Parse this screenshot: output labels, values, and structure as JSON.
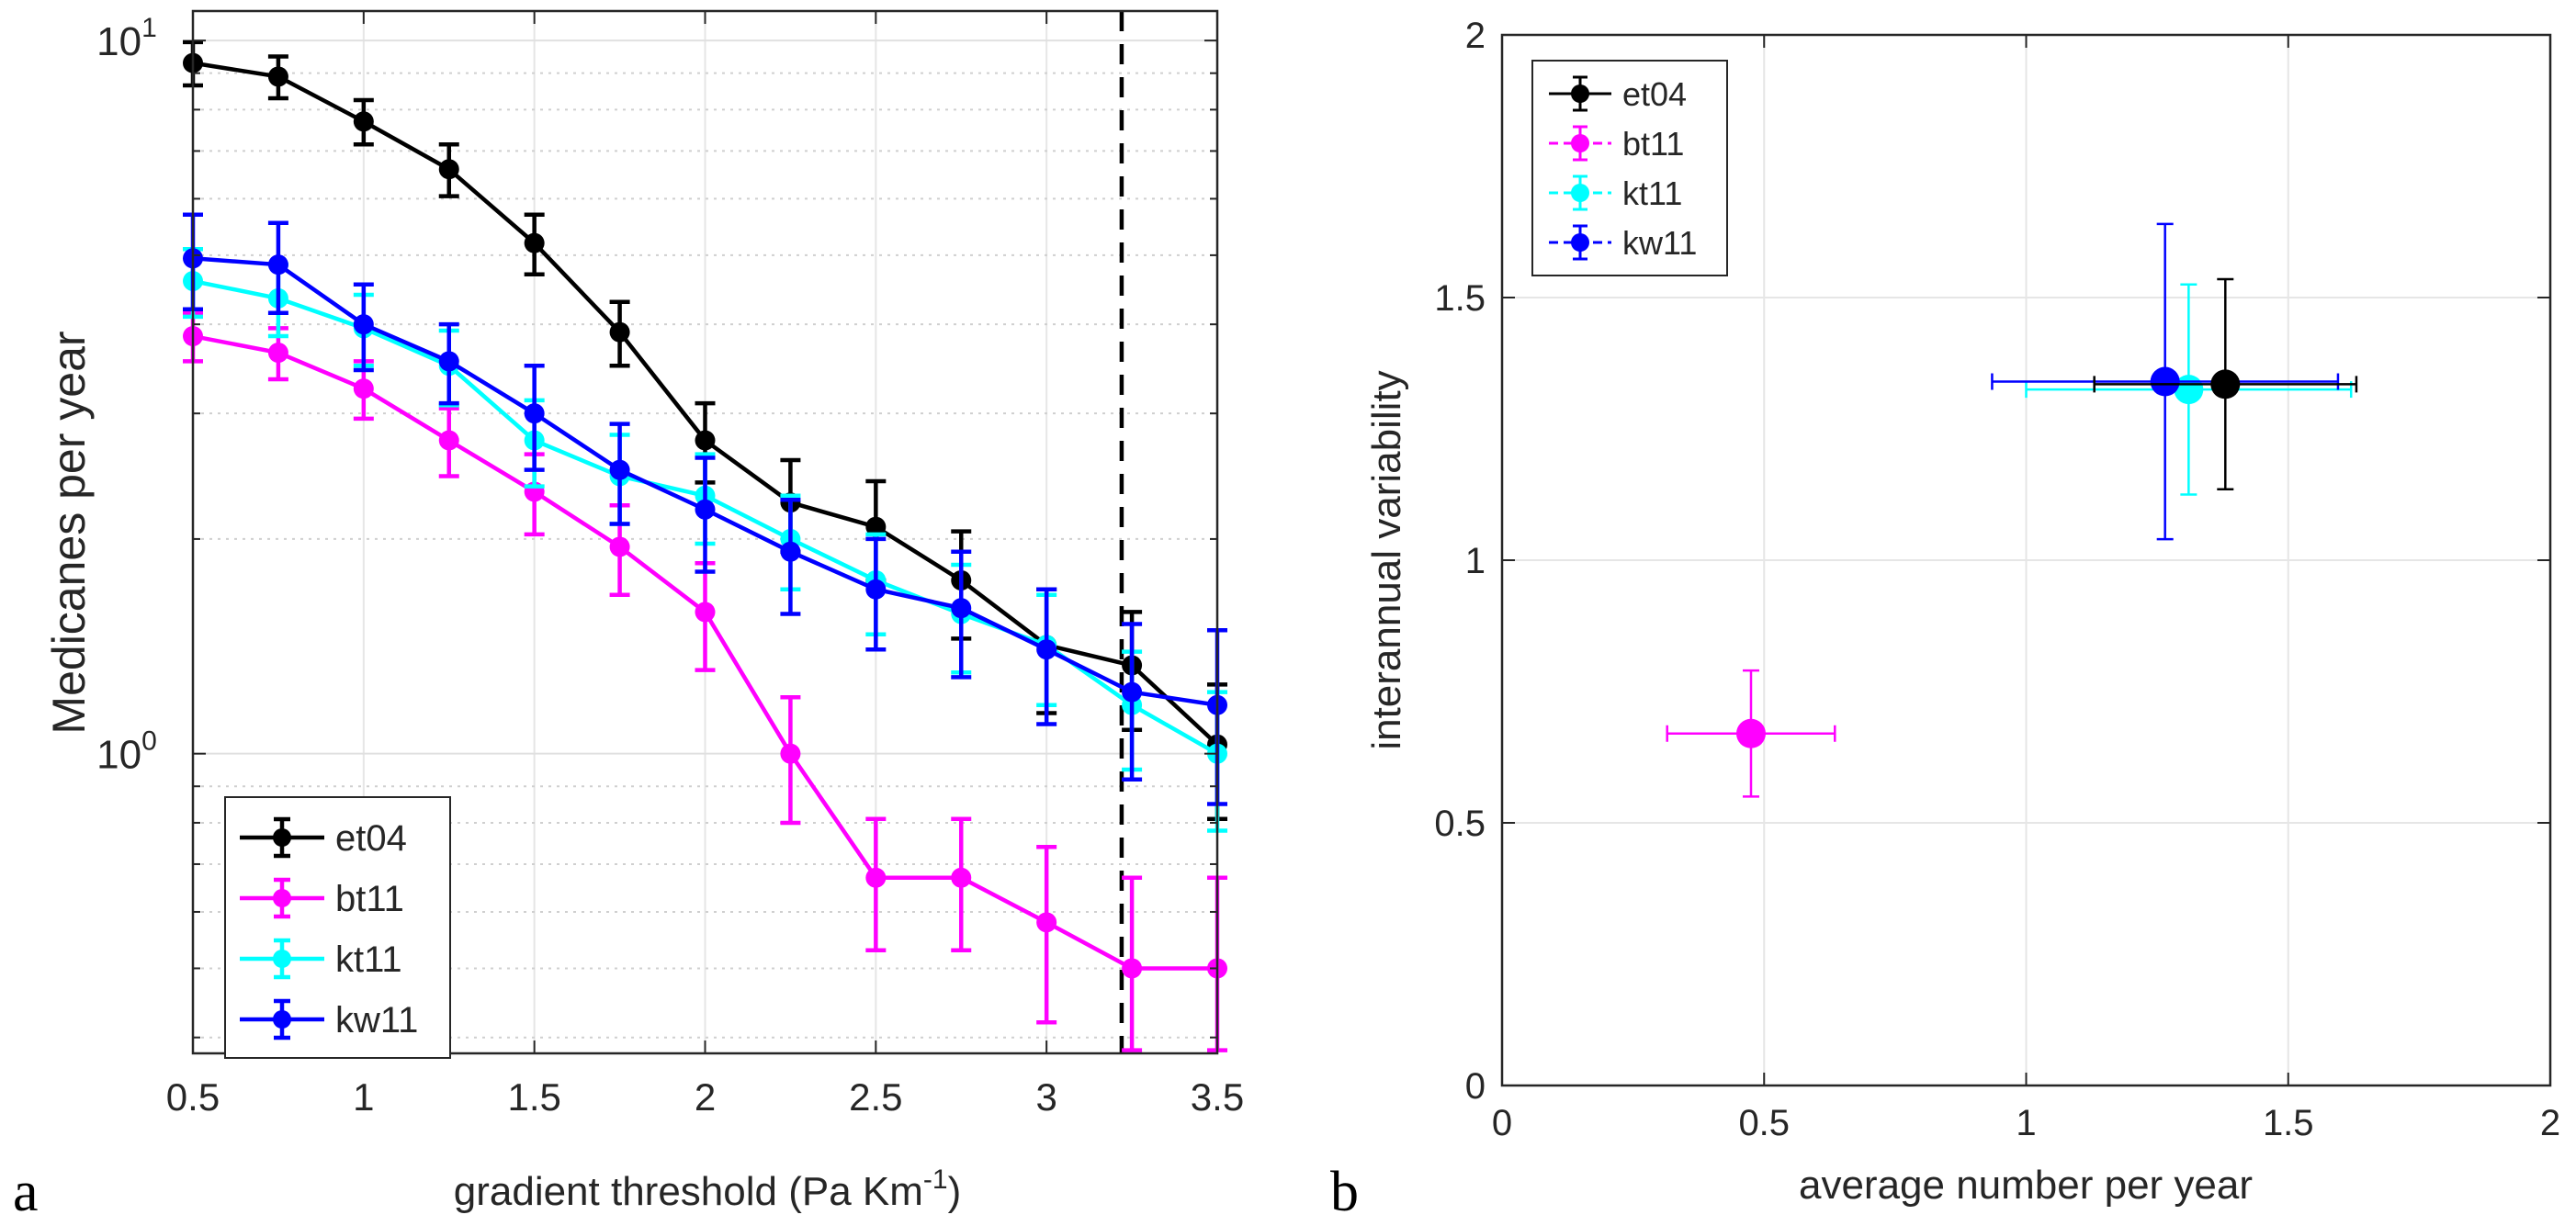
{
  "chart_data": [
    {
      "type": "line",
      "panel_label": "a",
      "xlabel": "gradient threshold (Pa Km",
      "xlabel_sup": "-1",
      "xlabel_end": ")",
      "ylabel": "Medicanes per year",
      "yscale": "log",
      "xlim": [
        0.5,
        3.5
      ],
      "ylim": [
        0.38,
        11
      ],
      "x_ticks": [
        0.5,
        1,
        1.5,
        2,
        2.5,
        3,
        3.5
      ],
      "x_tick_labels": [
        "0.5",
        "1",
        "1.5",
        "2",
        "2.5",
        "3",
        "3.5"
      ],
      "y_tick_labels": [
        {
          "value": 1,
          "base": "10",
          "exp": "0"
        },
        {
          "value": 10,
          "base": "10",
          "exp": "1"
        }
      ],
      "grid": true,
      "threshold_line_x": 3.22,
      "legend_position": "bottom-left",
      "x": [
        0.5,
        0.75,
        1,
        1.25,
        1.5,
        1.75,
        2,
        2.25,
        2.5,
        2.75,
        3,
        3.25,
        3.5
      ],
      "series": [
        {
          "name": "et04",
          "color": "#000000",
          "values": [
            9.3,
            8.9,
            7.7,
            6.6,
            5.2,
            3.9,
            2.75,
            2.25,
            2.08,
            1.75,
            1.42,
            1.33,
            1.03
          ],
          "errors": [
            0.65,
            0.6,
            0.55,
            0.55,
            0.5,
            0.4,
            0.35,
            0.33,
            0.33,
            0.3,
            0.28,
            0.25,
            0.22
          ]
        },
        {
          "name": "bt11",
          "color": "#ff00ff",
          "values": [
            3.85,
            3.65,
            3.25,
            2.75,
            2.33,
            1.95,
            1.58,
            1.0,
            0.67,
            0.67,
            0.58,
            0.5,
            0.5
          ],
          "errors": [
            0.3,
            0.3,
            0.3,
            0.3,
            0.3,
            0.28,
            0.27,
            0.2,
            0.14,
            0.14,
            0.16,
            0.17,
            0.17
          ]
        },
        {
          "name": "kt11",
          "color": "#00ffff",
          "values": [
            4.6,
            4.35,
            3.95,
            3.5,
            2.75,
            2.45,
            2.3,
            2.0,
            1.75,
            1.57,
            1.42,
            1.17,
            1.0
          ],
          "errors": [
            0.5,
            0.5,
            0.45,
            0.42,
            0.38,
            0.35,
            0.33,
            0.3,
            0.28,
            0.27,
            0.25,
            0.22,
            0.22
          ]
        },
        {
          "name": "kw11",
          "color": "#0000ff",
          "values": [
            4.95,
            4.85,
            4.0,
            3.55,
            3.0,
            2.5,
            2.2,
            1.92,
            1.7,
            1.6,
            1.4,
            1.22,
            1.17
          ],
          "errors": [
            0.75,
            0.7,
            0.55,
            0.45,
            0.5,
            0.4,
            0.4,
            0.35,
            0.3,
            0.32,
            0.3,
            0.3,
            0.32
          ]
        }
      ]
    },
    {
      "type": "scatter",
      "panel_label": "b",
      "xlabel": "average number per year",
      "ylabel": "interannual variability",
      "xlim": [
        0,
        2
      ],
      "ylim": [
        0,
        2
      ],
      "x_ticks": [
        0,
        0.5,
        1,
        1.5,
        2
      ],
      "x_tick_labels": [
        "0",
        "0.5",
        "1",
        "1.5",
        "2"
      ],
      "y_ticks": [
        0,
        0.5,
        1,
        1.5,
        2
      ],
      "y_tick_labels": [
        "0",
        "0.5",
        "1",
        "1.5",
        "2"
      ],
      "grid": true,
      "legend_position": "top-left",
      "series": [
        {
          "name": "et04",
          "color": "#000000",
          "x": 1.38,
          "y": 1.335,
          "xerr": 0.25,
          "yerr": 0.2
        },
        {
          "name": "bt11",
          "color": "#ff00ff",
          "x": 0.475,
          "y": 0.67,
          "xerr": 0.16,
          "yerr": 0.12
        },
        {
          "name": "kt11",
          "color": "#00ffff",
          "x": 1.31,
          "y": 1.325,
          "xerr": 0.31,
          "yerr": 0.2
        },
        {
          "name": "kw11",
          "color": "#0000ff",
          "x": 1.265,
          "y": 1.34,
          "xerr": 0.33,
          "yerr": 0.3
        }
      ]
    }
  ]
}
